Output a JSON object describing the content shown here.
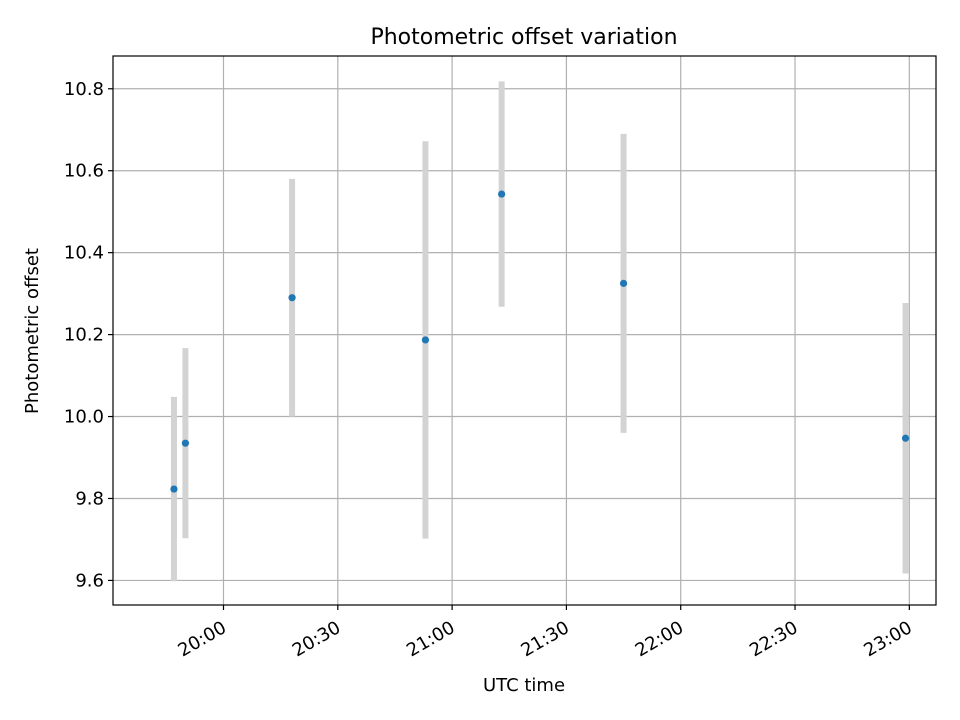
{
  "chart_data": {
    "type": "scatter",
    "title": "Photometric offset variation",
    "xlabel": "UTC time",
    "ylabel": "Photometric offset",
    "grid": true,
    "xlim": [
      "19:31",
      "23:07"
    ],
    "ylim": [
      9.54,
      10.88
    ],
    "xticks": [
      "20:00",
      "20:30",
      "21:00",
      "21:30",
      "22:00",
      "22:30",
      "23:00"
    ],
    "yticks": [
      "9.6",
      "9.8",
      "10.0",
      "10.2",
      "10.4",
      "10.6",
      "10.8"
    ],
    "series": [
      {
        "marker_color": "#1f77b4",
        "errorbar_color": "#d3d3d3",
        "points": [
          {
            "x": "19:47",
            "y": 9.823,
            "yerr": 0.225
          },
          {
            "x": "19:50",
            "y": 9.935,
            "yerr": 0.232
          },
          {
            "x": "20:18",
            "y": 10.29,
            "yerr": 0.29
          },
          {
            "x": "20:53",
            "y": 10.187,
            "yerr": 0.485
          },
          {
            "x": "21:13",
            "y": 10.543,
            "yerr": 0.275
          },
          {
            "x": "21:45",
            "y": 10.325,
            "yerr": 0.365
          },
          {
            "x": "22:59",
            "y": 9.947,
            "yerr": 0.33
          }
        ]
      }
    ]
  }
}
